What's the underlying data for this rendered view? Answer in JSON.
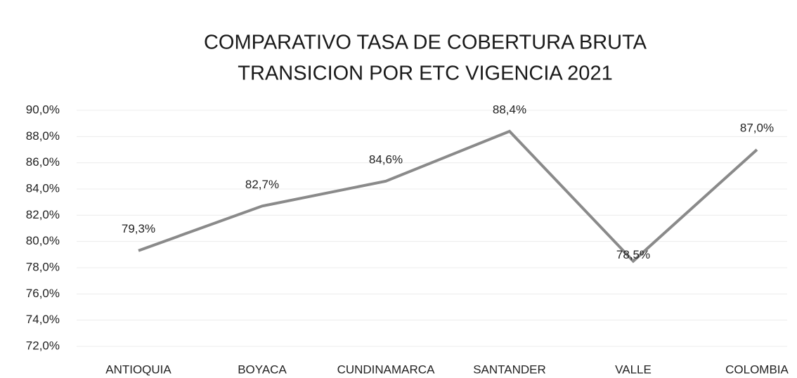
{
  "chart_data": {
    "type": "line",
    "title": [
      "COMPARATIVO TASA DE COBERTURA BRUTA",
      "TRANSICION POR ETC VIGENCIA 2021"
    ],
    "categories": [
      "ANTIOQUIA",
      "BOYACA",
      "CUNDINAMARCA",
      "SANTANDER",
      "VALLE",
      "COLOMBIA"
    ],
    "values": [
      79.3,
      82.7,
      84.6,
      88.4,
      78.5,
      87.0
    ],
    "value_labels": [
      "79,3%",
      "82,7%",
      "84,6%",
      "88,4%",
      "78,5%",
      "87,0%"
    ],
    "color": "#8a8a8a",
    "ylim": [
      72,
      90
    ],
    "yticks": [
      {
        "value": 72,
        "label": "72,0%"
      },
      {
        "value": 74,
        "label": "74,0%"
      },
      {
        "value": 76,
        "label": "76,0%"
      },
      {
        "value": 78,
        "label": "78,0%"
      },
      {
        "value": 80,
        "label": "80,0%"
      },
      {
        "value": 82,
        "label": "82,0%"
      },
      {
        "value": 84,
        "label": "84,0%"
      },
      {
        "value": 86,
        "label": "86,0%"
      },
      {
        "value": 88,
        "label": "88,0%"
      },
      {
        "value": 90,
        "label": "90,0%"
      }
    ],
    "grid": true
  }
}
